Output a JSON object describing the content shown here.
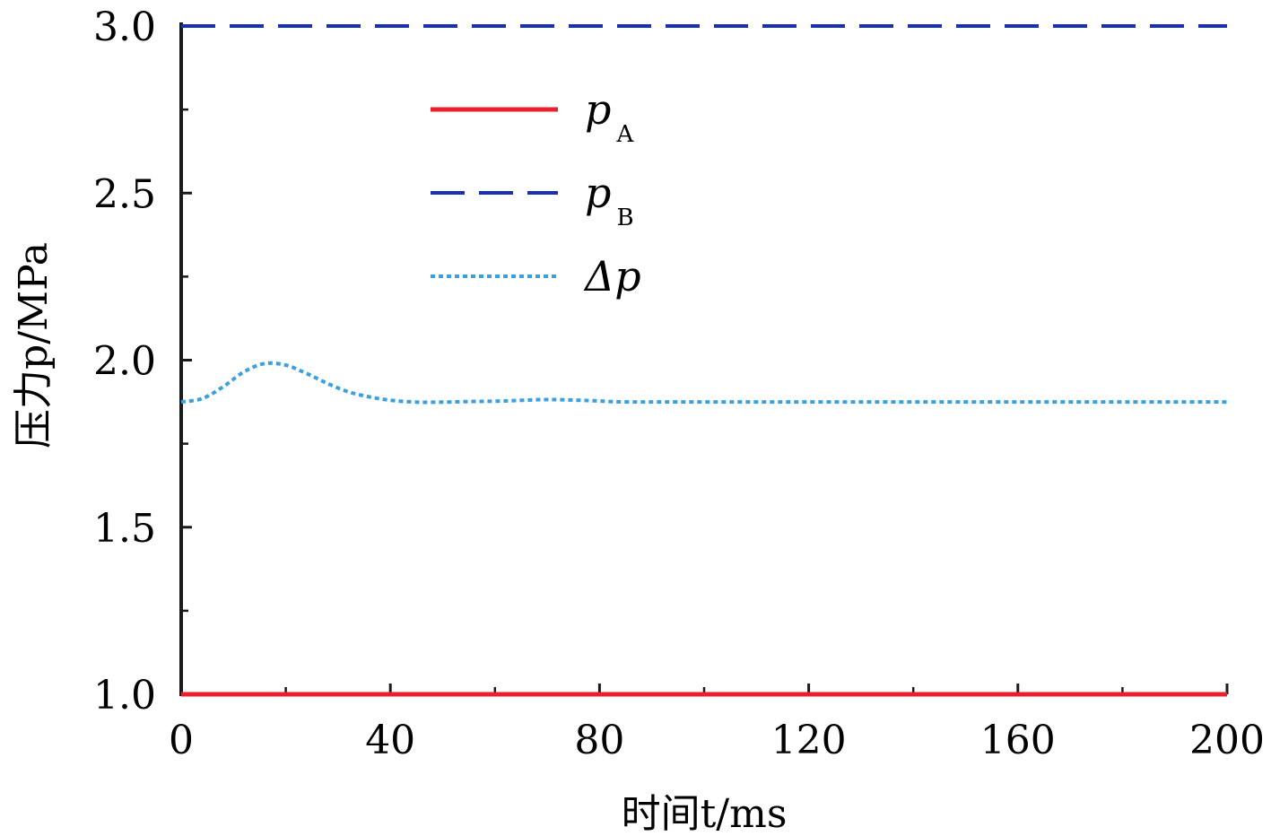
{
  "chart_data": {
    "type": "line",
    "xlabel": "时间t/ms",
    "ylabel": "压力p/MPa",
    "xlim": [
      0,
      200
    ],
    "ylim": [
      1.0,
      3.0
    ],
    "xticks": [
      "0",
      "40",
      "80",
      "120",
      "160",
      "200"
    ],
    "yticks": [
      "1.0",
      "1.5",
      "2.0",
      "2.5",
      "3.0"
    ],
    "grid": false,
    "legend_position": "upper-center",
    "series": [
      {
        "name": "pA",
        "label_main": "p",
        "label_sub": "A",
        "style": "solid",
        "color": "#e8202e",
        "x": [
          0,
          200
        ],
        "y": [
          1.0,
          1.0
        ]
      },
      {
        "name": "pB",
        "label_main": "p",
        "label_sub": "B",
        "style": "dashed",
        "color": "#1a2fb8",
        "x": [
          0,
          200
        ],
        "y": [
          3.0,
          3.0
        ]
      },
      {
        "name": "Δp",
        "label_main": "Δp",
        "label_sub": "",
        "style": "dotted",
        "color": "#3aa0e0",
        "x": [
          0,
          4,
          8,
          12,
          16,
          20,
          24,
          28,
          32,
          36,
          40,
          44,
          48,
          55,
          62,
          70,
          78,
          85,
          100,
          130,
          160,
          200
        ],
        "y": [
          1.875,
          1.885,
          1.92,
          1.965,
          1.99,
          1.985,
          1.96,
          1.93,
          1.905,
          1.89,
          1.88,
          1.875,
          1.874,
          1.876,
          1.878,
          1.882,
          1.879,
          1.875,
          1.875,
          1.875,
          1.875,
          1.875
        ]
      }
    ]
  }
}
